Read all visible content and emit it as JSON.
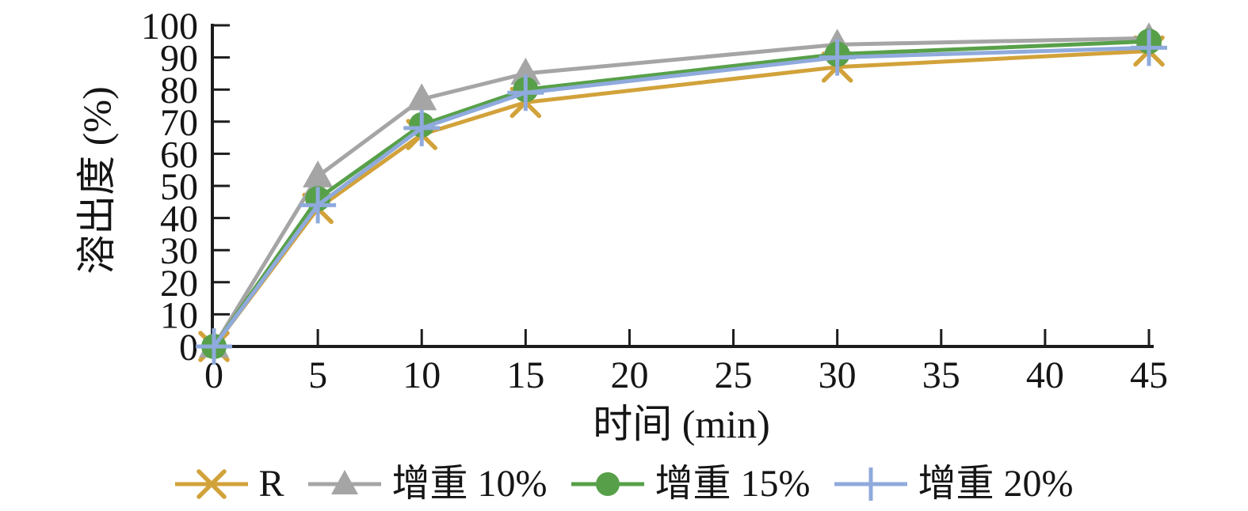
{
  "chart_data": {
    "type": "line",
    "title": "",
    "xlabel": "时间 (min)",
    "ylabel": "溶出度 (%)",
    "x": [
      0,
      5,
      10,
      15,
      30,
      45
    ],
    "xlim": [
      0,
      45
    ],
    "ylim": [
      0,
      100
    ],
    "x_ticks": [
      0,
      5,
      10,
      15,
      20,
      25,
      30,
      35,
      40,
      45
    ],
    "y_ticks": [
      0,
      10,
      20,
      30,
      40,
      50,
      60,
      70,
      80,
      90,
      100
    ],
    "grid": false,
    "legend_position": "bottom",
    "axis_color": "#1c1c1c",
    "text_color": "#151515",
    "series": [
      {
        "name": "R",
        "marker": "x",
        "color": "#D2A23A",
        "values": [
          0,
          43,
          66,
          76,
          87,
          92
        ]
      },
      {
        "name": "增重 10%",
        "marker": "triangle",
        "color": "#A5A5A5",
        "values": [
          0,
          53,
          77,
          85,
          94,
          96
        ]
      },
      {
        "name": "增重 15%",
        "marker": "circle",
        "color": "#57A049",
        "values": [
          0,
          46,
          69,
          80,
          91,
          95
        ]
      },
      {
        "name": "增重 20%",
        "marker": "plus",
        "color": "#8FAADC",
        "values": [
          0,
          44,
          68,
          79,
          90,
          93
        ]
      }
    ]
  }
}
